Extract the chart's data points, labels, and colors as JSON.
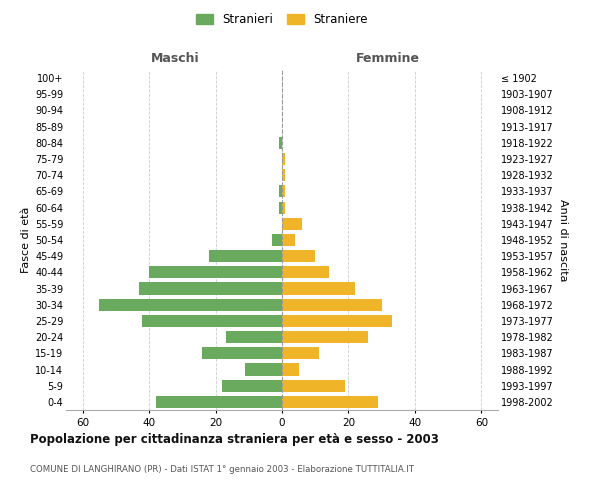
{
  "age_groups": [
    "0-4",
    "5-9",
    "10-14",
    "15-19",
    "20-24",
    "25-29",
    "30-34",
    "35-39",
    "40-44",
    "45-49",
    "50-54",
    "55-59",
    "60-64",
    "65-69",
    "70-74",
    "75-79",
    "80-84",
    "85-89",
    "90-94",
    "95-99",
    "100+"
  ],
  "birth_years": [
    "1998-2002",
    "1993-1997",
    "1988-1992",
    "1983-1987",
    "1978-1982",
    "1973-1977",
    "1968-1972",
    "1963-1967",
    "1958-1962",
    "1953-1957",
    "1948-1952",
    "1943-1947",
    "1938-1942",
    "1933-1937",
    "1928-1932",
    "1923-1927",
    "1918-1922",
    "1913-1917",
    "1908-1912",
    "1903-1907",
    "≤ 1902"
  ],
  "males": [
    38,
    18,
    11,
    24,
    17,
    42,
    55,
    43,
    40,
    22,
    3,
    0,
    1,
    1,
    0,
    0,
    1,
    0,
    0,
    0,
    0
  ],
  "females": [
    29,
    19,
    5,
    11,
    26,
    33,
    30,
    22,
    14,
    10,
    4,
    6,
    1,
    1,
    1,
    1,
    0,
    0,
    0,
    0,
    0
  ],
  "male_color": "#6aaa5e",
  "female_color": "#f0b429",
  "background_color": "#ffffff",
  "grid_color": "#cccccc",
  "title": "Popolazione per cittadinanza straniera per età e sesso - 2003",
  "subtitle": "COMUNE DI LANGHIRANO (PR) - Dati ISTAT 1° gennaio 2003 - Elaborazione TUTTITALIA.IT",
  "xlabel_left": "Maschi",
  "xlabel_right": "Femmine",
  "ylabel_left": "Fasce di età",
  "ylabel_right": "Anni di nascita",
  "legend_male": "Stranieri",
  "legend_female": "Straniere",
  "xlim": 65
}
